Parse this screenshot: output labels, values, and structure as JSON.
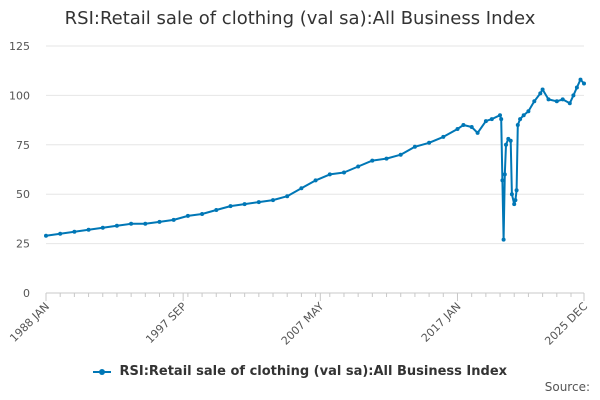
{
  "chart_data": {
    "type": "line",
    "title": "RSI:Retail sale of clothing (val sa):All Business Index",
    "xlabel": "",
    "ylabel": "",
    "x_range": [
      "1988 JAN",
      "2025 DEC"
    ],
    "x_tick_labels": [
      "1988 JAN",
      "1997 SEP",
      "2007 MAY",
      "2017 JAN",
      "2025 DEC"
    ],
    "y_tick_labels": [
      "0",
      "25",
      "50",
      "75",
      "100",
      "125"
    ],
    "ylim": [
      0,
      125
    ],
    "grid": "horizontal",
    "legend_position": "bottom",
    "series": [
      {
        "name": "RSI:Retail sale of clothing (val sa):All Business Index",
        "color": "#0077b6",
        "points": [
          [
            "1988-01",
            29
          ],
          [
            "1989-01",
            30
          ],
          [
            "1990-01",
            31
          ],
          [
            "1991-01",
            32
          ],
          [
            "1992-01",
            33
          ],
          [
            "1993-01",
            34
          ],
          [
            "1994-01",
            35
          ],
          [
            "1995-01",
            35
          ],
          [
            "1996-01",
            36
          ],
          [
            "1997-01",
            37
          ],
          [
            "1998-01",
            39
          ],
          [
            "1999-01",
            40
          ],
          [
            "2000-01",
            42
          ],
          [
            "2001-01",
            44
          ],
          [
            "2002-01",
            45
          ],
          [
            "2003-01",
            46
          ],
          [
            "2004-01",
            47
          ],
          [
            "2005-01",
            49
          ],
          [
            "2006-01",
            53
          ],
          [
            "2007-01",
            57
          ],
          [
            "2008-01",
            60
          ],
          [
            "2009-01",
            61
          ],
          [
            "2010-01",
            64
          ],
          [
            "2011-01",
            67
          ],
          [
            "2012-01",
            68
          ],
          [
            "2013-01",
            70
          ],
          [
            "2014-01",
            74
          ],
          [
            "2015-01",
            76
          ],
          [
            "2016-01",
            79
          ],
          [
            "2017-01",
            83
          ],
          [
            "2017-06",
            85
          ],
          [
            "2018-01",
            84
          ],
          [
            "2018-06",
            81
          ],
          [
            "2019-01",
            87
          ],
          [
            "2019-06",
            88
          ],
          [
            "2020-01",
            90
          ],
          [
            "2020-02",
            88
          ],
          [
            "2020-03",
            57
          ],
          [
            "2020-04",
            27
          ],
          [
            "2020-05",
            60
          ],
          [
            "2020-06",
            75
          ],
          [
            "2020-08",
            78
          ],
          [
            "2020-10",
            77
          ],
          [
            "2020-11",
            50
          ],
          [
            "2021-01",
            45
          ],
          [
            "2021-02",
            47
          ],
          [
            "2021-03",
            52
          ],
          [
            "2021-04",
            85
          ],
          [
            "2021-06",
            88
          ],
          [
            "2021-09",
            90
          ],
          [
            "2022-01",
            92
          ],
          [
            "2022-06",
            97
          ],
          [
            "2022-11",
            101
          ],
          [
            "2023-01",
            103
          ],
          [
            "2023-06",
            98
          ],
          [
            "2024-01",
            97
          ],
          [
            "2024-06",
            98
          ],
          [
            "2024-12",
            96
          ],
          [
            "2025-03",
            100
          ],
          [
            "2025-06",
            104
          ],
          [
            "2025-09",
            108
          ],
          [
            "2025-12",
            106
          ]
        ]
      }
    ]
  },
  "source_label": "Source:"
}
